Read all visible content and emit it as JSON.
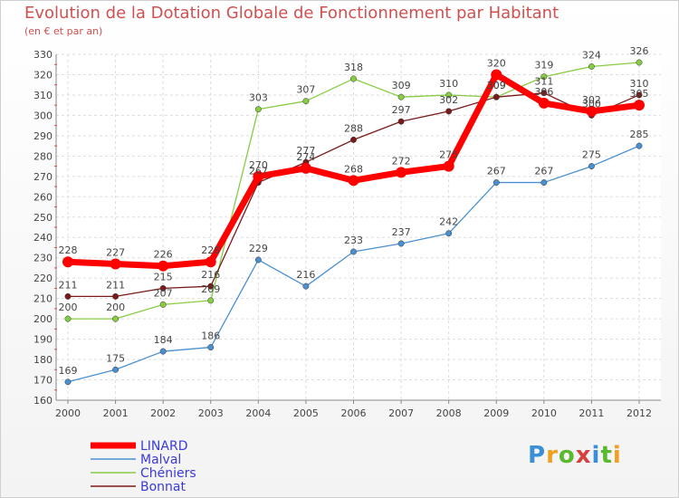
{
  "title": "Evolution de la Dotation Globale de Fonctionnement par Habitant",
  "subtitle": "(en € et par an)",
  "logo_text": "Proxiti",
  "colors": {
    "title": "#d05050",
    "LINARD": "#ff0000",
    "Malval": "#4a90d0",
    "Chéniers": "#88cc44",
    "Bonnat": "#7a1a1a"
  },
  "chart_data": {
    "type": "line",
    "title": "Evolution de la Dotation Globale de Fonctionnement par Habitant",
    "subtitle": "(en € et par an)",
    "xlabel": "",
    "ylabel": "",
    "ylim": [
      160,
      330
    ],
    "y_ticks": [
      160,
      170,
      180,
      190,
      200,
      210,
      220,
      230,
      240,
      250,
      260,
      270,
      280,
      290,
      300,
      310,
      320,
      330
    ],
    "categories": [
      "2000",
      "2001",
      "2002",
      "2003",
      "2004",
      "2005",
      "2006",
      "2007",
      "2008",
      "2009",
      "2010",
      "2011",
      "2012"
    ],
    "grid": true,
    "legend_position": "bottom-left",
    "series": [
      {
        "name": "Malval",
        "color": "#4a90d0",
        "values": [
          169,
          175,
          184,
          186,
          229,
          216,
          233,
          237,
          242,
          267,
          267,
          275,
          285
        ]
      },
      {
        "name": "Chéniers",
        "color": "#88cc44",
        "values": [
          200,
          200,
          207,
          209,
          303,
          307,
          318,
          309,
          310,
          309,
          319,
          324,
          326
        ]
      },
      {
        "name": "Bonnat",
        "color": "#7a1a1a",
        "values": [
          211,
          211,
          215,
          216,
          267,
          277,
          288,
          297,
          302,
          309,
          311,
          300,
          310
        ]
      },
      {
        "name": "LINARD",
        "color": "#ff0000",
        "values": [
          228,
          227,
          226,
          228,
          270,
          274,
          268,
          272,
          275,
          320,
          306,
          302,
          305
        ]
      }
    ],
    "legend": [
      "LINARD",
      "Malval",
      "Chéniers",
      "Bonnat"
    ]
  }
}
